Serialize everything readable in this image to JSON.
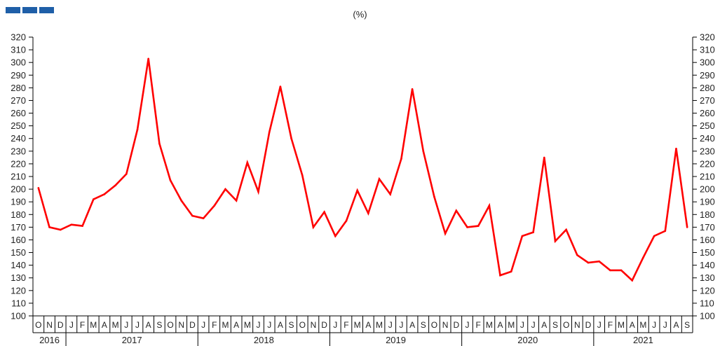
{
  "brand": {
    "color": "#1f5fa8",
    "blocks": 3
  },
  "title": "",
  "unit": "(%)",
  "chart_data": {
    "type": "line",
    "line_color": "#ff0000",
    "ylim": [
      100,
      320
    ],
    "yticks": [
      100,
      110,
      120,
      130,
      140,
      150,
      160,
      170,
      180,
      190,
      200,
      210,
      220,
      230,
      240,
      250,
      260,
      270,
      280,
      290,
      300,
      310,
      320
    ],
    "right_axis": true,
    "grid": false,
    "months": [
      "O",
      "N",
      "D",
      "J",
      "F",
      "M",
      "A",
      "M",
      "J",
      "J",
      "A",
      "S",
      "O",
      "N",
      "D",
      "J",
      "F",
      "M",
      "A",
      "M",
      "J",
      "J",
      "A",
      "S",
      "O",
      "N",
      "D",
      "J",
      "F",
      "M",
      "A",
      "M",
      "J",
      "J",
      "A",
      "S",
      "O",
      "N",
      "D",
      "J",
      "F",
      "M",
      "A",
      "M",
      "J",
      "J",
      "A",
      "S",
      "O",
      "N",
      "D",
      "J",
      "F",
      "M",
      "A",
      "M",
      "J",
      "J",
      "A",
      "S"
    ],
    "years": [
      {
        "label": "2016",
        "start": 0,
        "count": 3
      },
      {
        "label": "2017",
        "start": 3,
        "count": 12
      },
      {
        "label": "2018",
        "start": 15,
        "count": 12
      },
      {
        "label": "2019",
        "start": 27,
        "count": 12
      },
      {
        "label": "2020",
        "start": 39,
        "count": 12
      },
      {
        "label": "2021",
        "start": 51,
        "count": 9
      }
    ],
    "series": [
      {
        "values": [
          201,
          170,
          168,
          172,
          171,
          192,
          196,
          203,
          212,
          247,
          303,
          236,
          207,
          191,
          179,
          177,
          187,
          200,
          191,
          221,
          198,
          245,
          281,
          240,
          211,
          170,
          182,
          163,
          175,
          199,
          181,
          208,
          196,
          224,
          279,
          230,
          194,
          165,
          183,
          170,
          171,
          187,
          132,
          135,
          163,
          166,
          225,
          159,
          168,
          148,
          142,
          143,
          136,
          136,
          128,
          146,
          163,
          167,
          232,
          170
        ]
      }
    ]
  }
}
